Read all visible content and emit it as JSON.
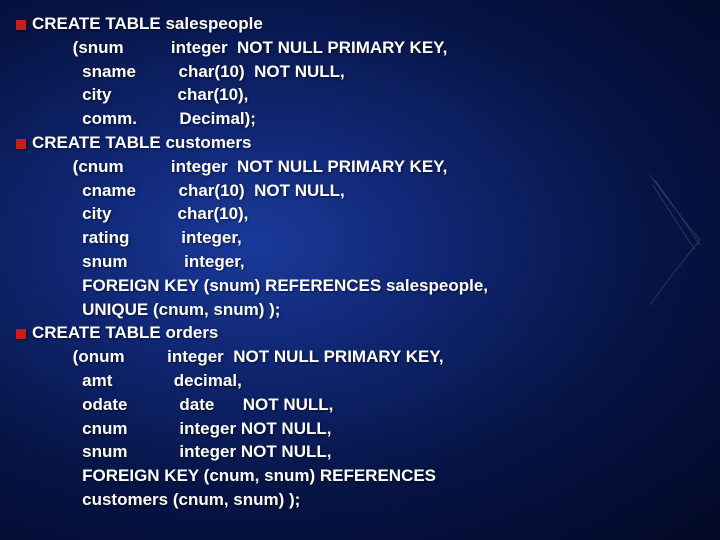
{
  "lines": [
    "CREATE TABLE salespeople",
    "        (snum          integer  NOT NULL PRIMARY KEY,",
    "          sname         char(10)  NOT NULL,",
    "          city              char(10),",
    "          comm.         Decimal);",
    "CREATE TABLE customers",
    "        (cnum          integer  NOT NULL PRIMARY KEY,",
    "          cname         char(10)  NOT NULL,",
    "          city              char(10),",
    "          rating           integer,",
    "          snum            integer,",
    "          FOREIGN KEY (snum) REFERENCES salespeople,",
    "          UNIQUE (cnum, snum) );",
    "CREATE TABLE orders",
    "        (onum         integer  NOT NULL PRIMARY KEY,",
    "          amt             decimal,",
    "          odate           date      NOT NULL,",
    "          cnum           integer NOT NULL,",
    "          snum           integer NOT NULL,",
    "          FOREIGN KEY (cnum, snum) REFERENCES",
    "          customers (cnum, snum) );"
  ],
  "bullet_lines": [
    0,
    5,
    13
  ],
  "colors": {
    "text": "#ffffff",
    "bullet": "#c41e1e",
    "bg_center": "#1a3a9a",
    "bg_mid": "#0f2570",
    "bg_outer": "#061445",
    "bg_edge": "#020825"
  },
  "font_size": 17,
  "font_weight": "bold"
}
